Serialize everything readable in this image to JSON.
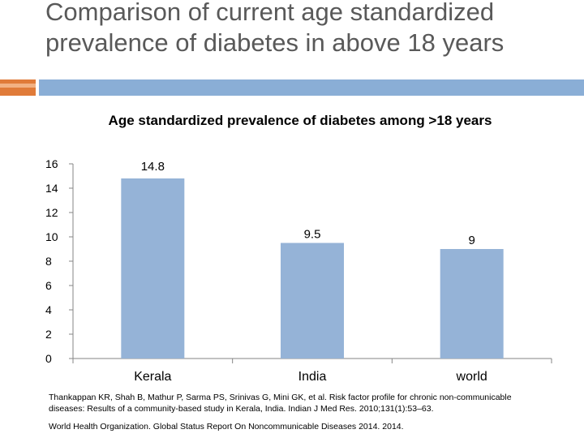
{
  "slide": {
    "title": "Comparison of current age standardized prevalence of diabetes in above 18 years"
  },
  "chart_data": {
    "type": "bar",
    "title": "Age standardized prevalence of diabetes among >18 years",
    "categories": [
      "Kerala",
      "India",
      "world"
    ],
    "values": [
      14.8,
      9.5,
      9
    ],
    "data_labels": [
      "14.8",
      "9.5",
      "9"
    ],
    "ylim": [
      0,
      16
    ],
    "yticks": [
      0,
      2,
      4,
      6,
      8,
      10,
      12,
      14,
      16
    ],
    "xlabel": "",
    "ylabel": "",
    "grid": false,
    "bar_color": "#95b3d7"
  },
  "references": [
    "Thankappan KR, Shah B, Mathur P, Sarma PS, Srinivas G, Mini GK, et al. Risk factor profile for chronic non-communicable diseases: Results of a community-based study in Kerala, India. Indian J Med Res. 2010;131(1):53–63.",
    "World Health Organization. Global Status Report On Noncommunicable Diseases 2014. 2014."
  ]
}
